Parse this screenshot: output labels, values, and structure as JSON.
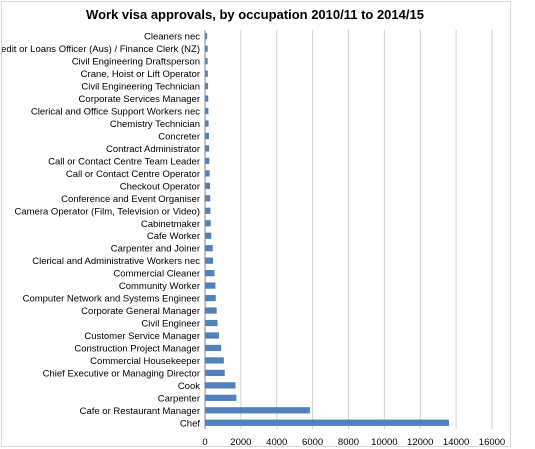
{
  "chart_data": {
    "type": "bar",
    "orientation": "horizontal",
    "title": "Work visa approvals, by occupation 2010/11 to 2014/15",
    "xlabel": "",
    "ylabel": "",
    "xlim": [
      0,
      16000
    ],
    "xticks": [
      0,
      2000,
      4000,
      6000,
      8000,
      10000,
      12000,
      14000,
      16000
    ],
    "grid": true,
    "legend": "none",
    "bar_color": "#4F81BD",
    "categories": [
      "Cleaners nec",
      "Credit or Loans Officer (Aus) / Finance Clerk (NZ)",
      "Civil Engineering Draftsperson",
      "Crane, Hoist or Lift Operator",
      "Civil Engineering Technician",
      "Corporate Services Manager",
      "Clerical and Office Support Workers nec",
      "Chemistry Technician",
      "Concreter",
      "Contract Administrator",
      "Call or Contact Centre Team Leader",
      "Call or Contact Centre Operator",
      "Checkout Operator",
      "Conference and Event Organiser",
      "Camera Operator (Film, Television or Video)",
      "Cabinetmaker",
      "Cafe Worker",
      "Carpenter and Joiner",
      "Clerical and Administrative Workers nec",
      "Commercial Cleaner",
      "Community Worker",
      "Computer Network and Systems Engineer",
      "Corporate General Manager",
      "Civil Engineer",
      "Customer Service Manager",
      "Construction Project Manager",
      "Commercial Housekeeper",
      "Chief Executive or Managing Director",
      "Cook",
      "Carpenter",
      "Cafe or Restaurant Manager",
      "Chef"
    ],
    "values": [
      120,
      150,
      150,
      160,
      170,
      180,
      190,
      200,
      220,
      230,
      240,
      260,
      280,
      290,
      300,
      320,
      350,
      430,
      450,
      530,
      580,
      600,
      650,
      700,
      780,
      900,
      1050,
      1100,
      1700,
      1750,
      5850,
      13600
    ]
  }
}
